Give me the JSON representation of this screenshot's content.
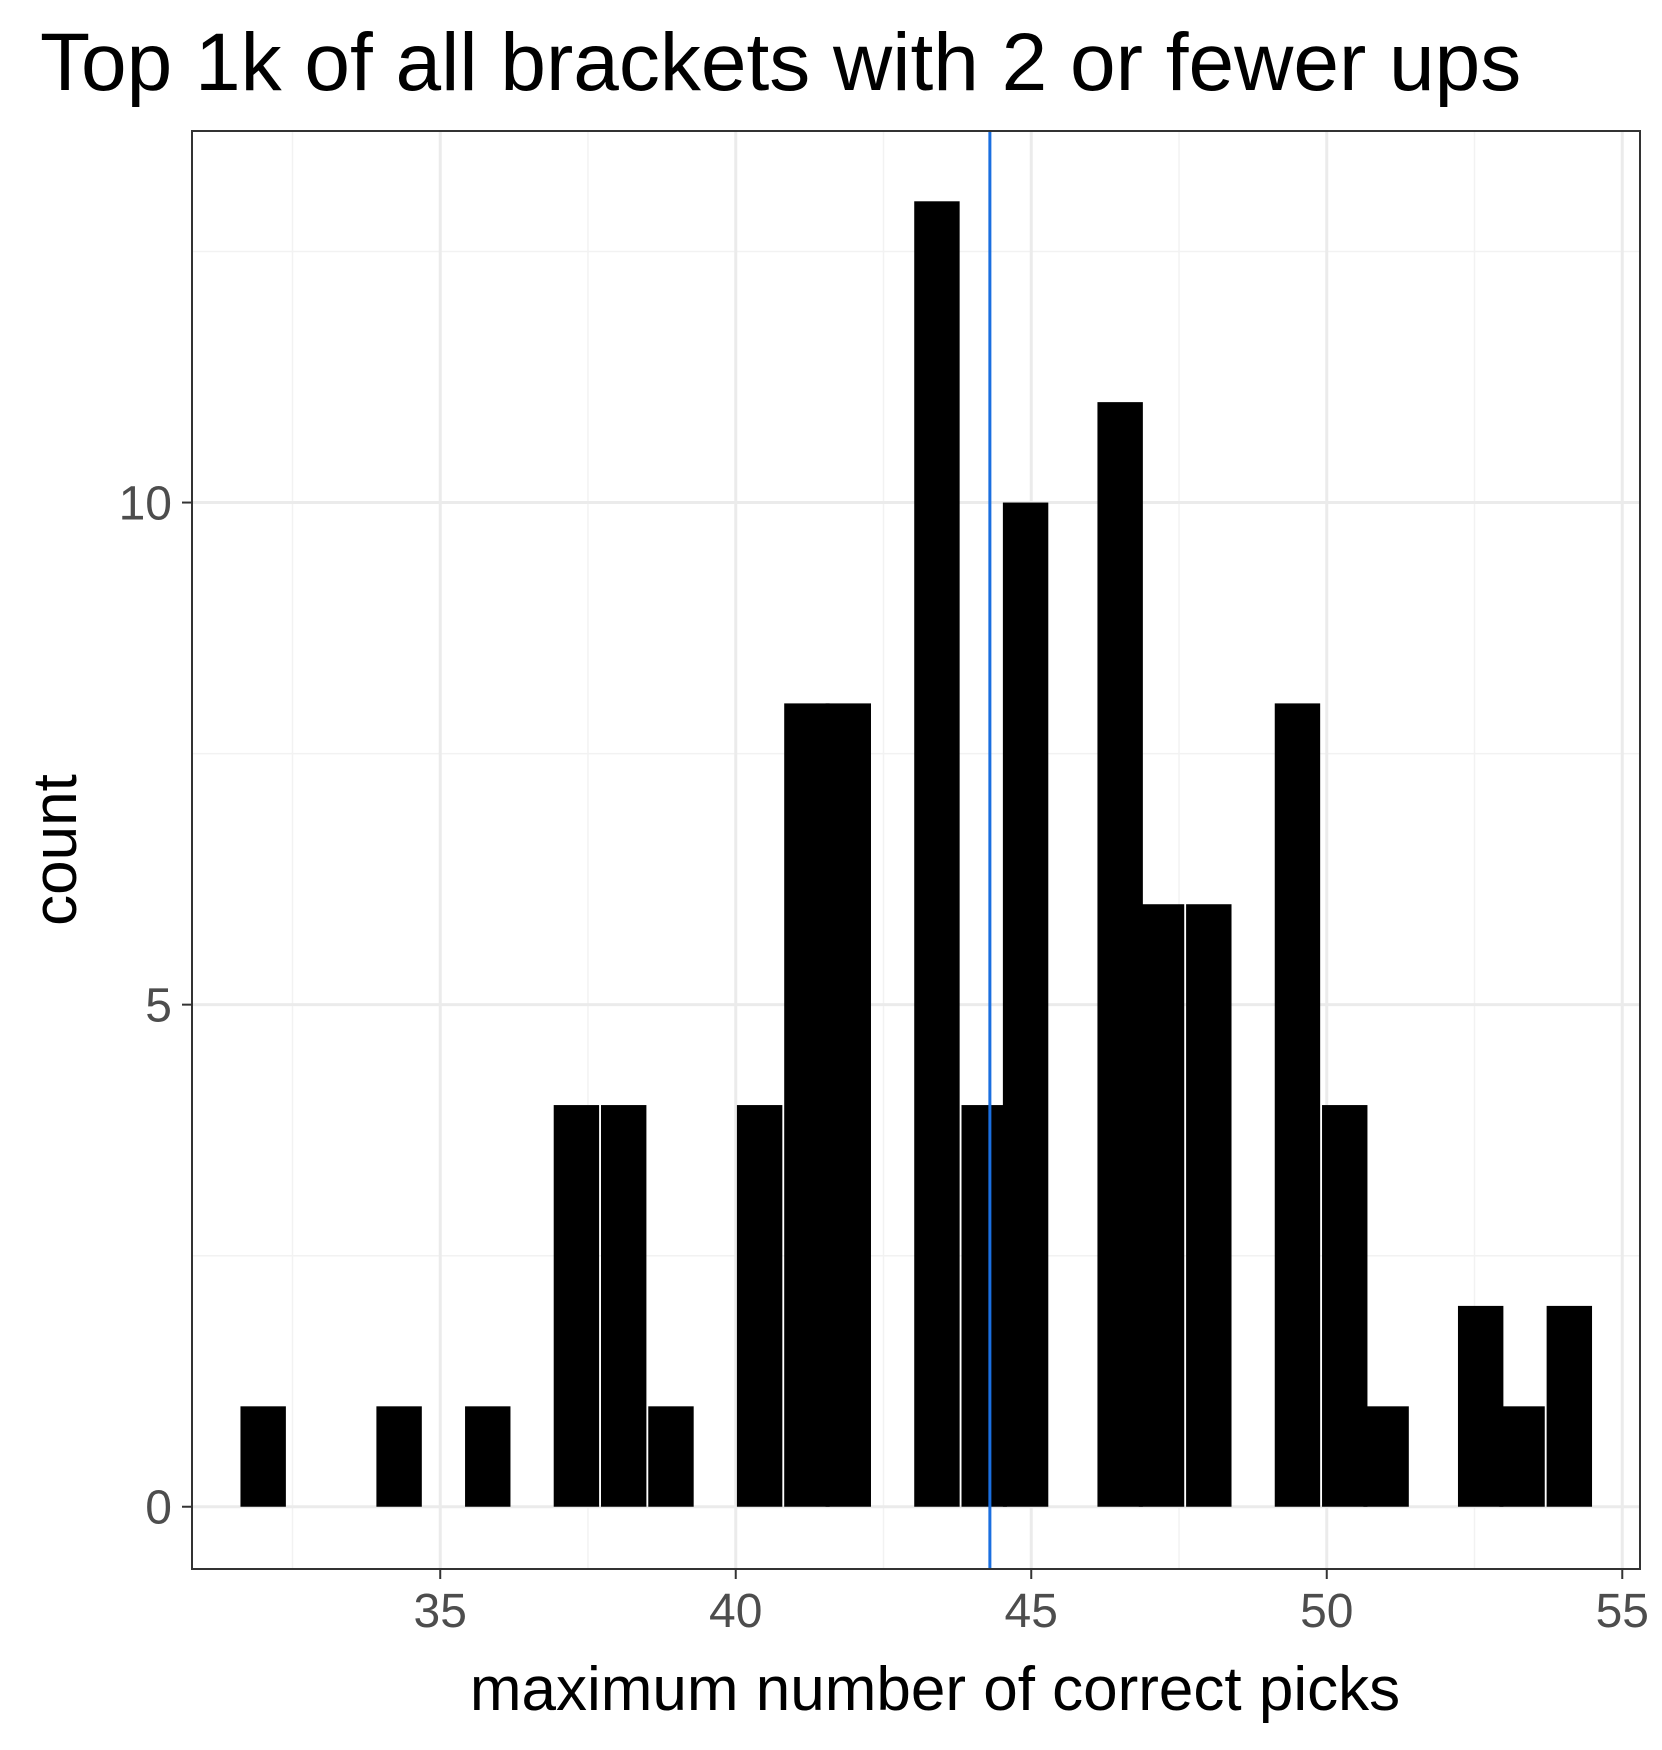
{
  "chart_data": {
    "type": "bar",
    "title": "Top 1k of all brackets with 2 or fewer ups",
    "xlabel": "maximum number of correct picks",
    "ylabel": "count",
    "xlim": [
      30.8,
      55.3
    ],
    "ylim": [
      -0.62,
      13.7
    ],
    "x_ticks": [
      35,
      40,
      45,
      50,
      55
    ],
    "y_ticks": [
      0,
      5,
      10
    ],
    "x_minor_grid": [
      32.5,
      37.5,
      42.5,
      47.5,
      52.5
    ],
    "y_minor_grid": [
      2.5,
      7.5,
      12.5
    ],
    "grid": true,
    "bin_width": 0.76,
    "bins": [
      {
        "x": 32.0,
        "count": 1
      },
      {
        "x": 34.3,
        "count": 1
      },
      {
        "x": 35.8,
        "count": 1
      },
      {
        "x": 37.3,
        "count": 4
      },
      {
        "x": 38.1,
        "count": 4
      },
      {
        "x": 38.9,
        "count": 1
      },
      {
        "x": 40.4,
        "count": 4
      },
      {
        "x": 41.2,
        "count": 8
      },
      {
        "x": 41.9,
        "count": 8
      },
      {
        "x": 43.4,
        "count": 13
      },
      {
        "x": 44.2,
        "count": 4
      },
      {
        "x": 44.9,
        "count": 10
      },
      {
        "x": 46.5,
        "count": 11
      },
      {
        "x": 47.2,
        "count": 6
      },
      {
        "x": 48.0,
        "count": 6
      },
      {
        "x": 49.5,
        "count": 8
      },
      {
        "x": 50.3,
        "count": 4
      },
      {
        "x": 51.0,
        "count": 1
      },
      {
        "x": 52.6,
        "count": 2
      },
      {
        "x": 53.3,
        "count": 1
      },
      {
        "x": 54.1,
        "count": 2
      }
    ],
    "reference_line": {
      "x": 44.3,
      "color": "#1a6fe0"
    },
    "colors": {
      "bars": "#000000",
      "grid_major": "#ebebeb",
      "grid_minor": "#f2f2f2",
      "panel_border": "#333333",
      "tick_text": "#4d4d4d"
    }
  }
}
